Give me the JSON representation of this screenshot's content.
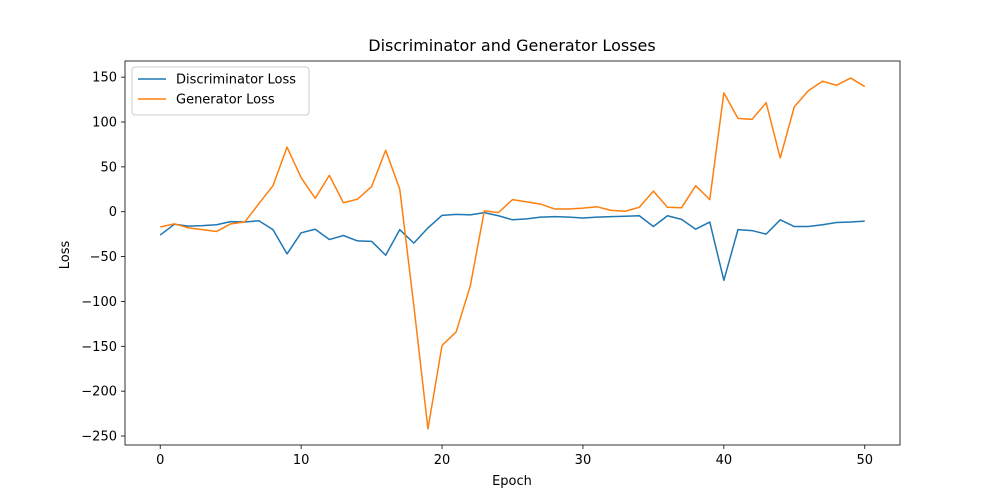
{
  "chart_data": {
    "type": "line",
    "title": "Discriminator and Generator Losses",
    "xlabel": "Epoch",
    "ylabel": "Loss",
    "xlim": [
      -2.5,
      52.5
    ],
    "ylim": [
      -260,
      168
    ],
    "xticks": [
      0,
      10,
      20,
      30,
      40,
      50
    ],
    "yticks": [
      -250,
      -200,
      -150,
      -100,
      -50,
      0,
      50,
      100,
      150
    ],
    "grid": false,
    "legend_position": "top-left",
    "x": [
      0,
      1,
      2,
      3,
      4,
      5,
      6,
      7,
      8,
      9,
      10,
      11,
      12,
      13,
      14,
      15,
      16,
      17,
      18,
      19,
      20,
      21,
      22,
      23,
      24,
      25,
      26,
      27,
      28,
      29,
      30,
      31,
      32,
      33,
      34,
      35,
      36,
      37,
      38,
      39,
      40,
      41,
      42,
      43,
      44,
      45,
      46,
      47,
      48,
      49,
      50
    ],
    "series": [
      {
        "name": "Discriminator Loss",
        "color": "#1f77b4",
        "values": [
          -26,
          -14,
          -16,
          -15.5,
          -14.5,
          -11,
          -11.5,
          -10,
          -20,
          -47,
          -23.5,
          -19.5,
          -31,
          -26.5,
          -32.5,
          -33,
          -48.5,
          -20,
          -35,
          -18,
          -4,
          -3,
          -3.5,
          -1,
          -4.5,
          -9,
          -8,
          -6,
          -5.5,
          -6,
          -7,
          -6,
          -5.5,
          -5,
          -4.5,
          -16.5,
          -4.5,
          -8.5,
          -19.5,
          -11.5,
          -76.5,
          -20,
          -21,
          -25,
          -9,
          -16.5,
          -16.5,
          -14.5,
          -12,
          -11.5,
          -10.5
        ]
      },
      {
        "name": "Generator Loss",
        "color": "#ff7f0e",
        "values": [
          -17,
          -13.5,
          -18,
          -20,
          -22,
          -13.5,
          -11.5,
          9,
          29,
          72,
          38,
          15,
          40.5,
          10,
          14,
          28,
          68.5,
          25,
          -105,
          -242,
          -149,
          -134,
          -83,
          1,
          -1,
          13.5,
          11,
          8.5,
          3,
          3,
          4,
          5.5,
          1.5,
          0.5,
          5,
          23,
          5,
          4.5,
          29,
          13.5,
          132.5,
          104,
          103,
          121.5,
          60,
          117,
          135,
          145.5,
          141,
          149,
          139.5
        ]
      }
    ]
  }
}
